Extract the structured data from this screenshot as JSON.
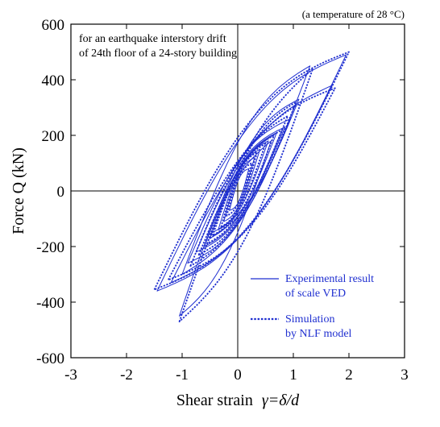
{
  "chart_data": {
    "type": "line",
    "title": "",
    "corner_note": "(a temperature of 28 °C)",
    "annotation_lines": [
      "for an earthquake interstory drift",
      "of 24th floor of a 24-story building"
    ],
    "xlabel": "Shear strain",
    "xlabel_formula": "γ=δ/d",
    "ylabel": "Force Q (kN)",
    "xlim": [
      -3,
      3
    ],
    "ylim": [
      -600,
      600
    ],
    "xticks": [
      -3,
      -2,
      -1,
      0,
      1,
      2,
      3
    ],
    "yticks": [
      -600,
      -400,
      -200,
      0,
      200,
      400,
      600
    ],
    "legend_position": "bottom-right",
    "colors": {
      "series": "#1f2fd0",
      "axes": "#000000"
    },
    "series": [
      {
        "name": "Experimental result of scale VED",
        "legend_lines": [
          "Experimental result",
          "of scale VED"
        ],
        "style": "solid",
        "loops": [
          {
            "x_min": -1.45,
            "x_max": 1.95,
            "y_at_min": -360,
            "y_at_max": 490,
            "width": 180
          },
          {
            "x_min": -1.2,
            "x_max": 1.7,
            "y_at_min": -330,
            "y_at_max": 380,
            "width": 140
          },
          {
            "x_min": -1.0,
            "x_max": 1.3,
            "y_at_min": -300,
            "y_at_max": 450,
            "width": 150
          },
          {
            "x_min": -0.9,
            "x_max": 0.95,
            "y_at_min": -260,
            "y_at_max": 260,
            "width": 110
          },
          {
            "x_min": -0.75,
            "x_max": 0.85,
            "y_at_min": -220,
            "y_at_max": 230,
            "width": 95
          },
          {
            "x_min": -0.6,
            "x_max": 0.7,
            "y_at_min": -200,
            "y_at_max": 210,
            "width": 85
          },
          {
            "x_min": -0.5,
            "x_max": 0.55,
            "y_at_min": -170,
            "y_at_max": 180,
            "width": 75
          },
          {
            "x_min": -0.35,
            "x_max": 0.4,
            "y_at_min": -140,
            "y_at_max": 150,
            "width": 65
          },
          {
            "x_min": -0.25,
            "x_max": 0.3,
            "y_at_min": -110,
            "y_at_max": 120,
            "width": 55
          },
          {
            "x_min": -0.15,
            "x_max": 0.2,
            "y_at_min": -70,
            "y_at_max": 80,
            "width": 40
          },
          {
            "x_min": -1.05,
            "x_max": 0.6,
            "y_at_min": -450,
            "y_at_max": 180,
            "width": 110
          },
          {
            "x_min": -0.55,
            "x_max": 1.1,
            "y_at_min": -160,
            "y_at_max": 330,
            "width": 100
          }
        ]
      },
      {
        "name": "Simulation by NLF model",
        "legend_lines": [
          "Simulation",
          "by NLF model"
        ],
        "style": "dotted",
        "loops": [
          {
            "x_min": -1.5,
            "x_max": 2.0,
            "y_at_min": -355,
            "y_at_max": 500,
            "width": 185
          },
          {
            "x_min": -1.25,
            "x_max": 1.75,
            "y_at_min": -320,
            "y_at_max": 370,
            "width": 145
          },
          {
            "x_min": -1.05,
            "x_max": 1.35,
            "y_at_min": -470,
            "y_at_max": 440,
            "width": 150
          },
          {
            "x_min": -0.85,
            "x_max": 0.9,
            "y_at_min": -270,
            "y_at_max": 270,
            "width": 105
          },
          {
            "x_min": -0.7,
            "x_max": 0.8,
            "y_at_min": -230,
            "y_at_max": 220,
            "width": 90
          },
          {
            "x_min": -0.55,
            "x_max": 0.65,
            "y_at_min": -190,
            "y_at_max": 200,
            "width": 80
          },
          {
            "x_min": -0.45,
            "x_max": 0.5,
            "y_at_min": -160,
            "y_at_max": 170,
            "width": 70
          },
          {
            "x_min": -0.3,
            "x_max": 0.35,
            "y_at_min": -130,
            "y_at_max": 140,
            "width": 60
          },
          {
            "x_min": -0.2,
            "x_max": 0.25,
            "y_at_min": -90,
            "y_at_max": 100,
            "width": 45
          },
          {
            "x_min": -0.5,
            "x_max": 1.05,
            "y_at_min": -170,
            "y_at_max": 320,
            "width": 95
          }
        ]
      }
    ]
  }
}
